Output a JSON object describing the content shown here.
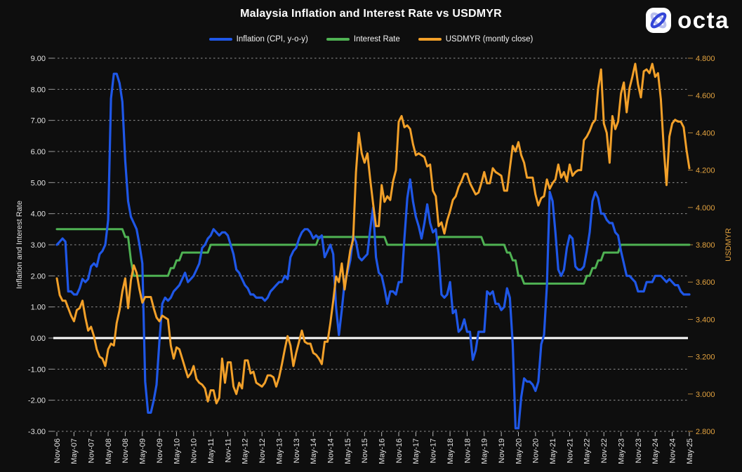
{
  "title": "Malaysia Inflation and Interest Rate vs USDMYR",
  "logo": {
    "text": "octa"
  },
  "legend": [
    {
      "label": "Inflation (CPI, y-o-y)",
      "color": "#1f57e7"
    },
    {
      "label": "Interest Rate",
      "color": "#4fb253"
    },
    {
      "label": "USDMYR (montly close)",
      "color": "#f2a029"
    }
  ],
  "chart_data": {
    "type": "line",
    "title": "Malaysia Inflation and Interest Rate vs USDMYR",
    "x_start": "Nov-2006",
    "x_end": "May-2025",
    "frequency": "monthly",
    "grid": {
      "horizontal": "dashed",
      "zero_line": "solid white"
    },
    "legend_position": "top",
    "x_tick_labels": [
      "Nov-06",
      "May-07",
      "Nov-07",
      "May-08",
      "Nov-08",
      "May-09",
      "Nov-09",
      "May-10",
      "Nov-10",
      "May-11",
      "Nov-11",
      "May-12",
      "Nov-12",
      "May-13",
      "Nov-13",
      "May-14",
      "Nov-14",
      "May-15",
      "Nov-15",
      "May-16",
      "Nov-16",
      "May-17",
      "Nov-17",
      "May-18",
      "Nov-18",
      "May-19",
      "Nov-19",
      "May-20",
      "Nov-20",
      "May-21",
      "Nov-21",
      "May-22",
      "Nov-22",
      "May-23",
      "Nov-23",
      "May-24",
      "Nov-24",
      "May-25"
    ],
    "left_axis": {
      "title": "Inflation and Interest Rate",
      "max": 9,
      "min": -3,
      "step": 1,
      "tick_labels": [
        "9.00",
        "8.00",
        "7.00",
        "6.00",
        "5.00",
        "4.00",
        "3.00",
        "2.00",
        "1.00",
        "0.00",
        "-1.00",
        "-2.00",
        "-3.00"
      ],
      "text_color": "#e3e3e3"
    },
    "right_axis": {
      "title": "USDMYR",
      "max": 4.8,
      "min": 2.8,
      "step": 0.2,
      "tick_labels": [
        "4.800",
        "4.600",
        "4.400",
        "4.200",
        "4.000",
        "3.800",
        "3.600",
        "3.400",
        "3.200",
        "3.000",
        "2.800"
      ],
      "text_color": "#e2a23f"
    },
    "series": [
      {
        "name": "Inflation (CPI, y-o-y)",
        "axis": "left",
        "color": "#1f57e7",
        "values": [
          3.0,
          3.1,
          3.2,
          3.1,
          1.5,
          1.5,
          1.4,
          1.4,
          1.6,
          1.9,
          1.8,
          1.9,
          2.3,
          2.4,
          2.3,
          2.7,
          2.8,
          3.0,
          3.8,
          7.7,
          8.5,
          8.5,
          8.2,
          7.6,
          5.7,
          4.4,
          3.9,
          3.7,
          3.5,
          3.0,
          2.4,
          -1.4,
          -2.4,
          -2.4,
          -2.0,
          -1.5,
          -0.1,
          1.1,
          1.3,
          1.2,
          1.3,
          1.5,
          1.6,
          1.7,
          1.9,
          2.1,
          1.8,
          1.9,
          2.0,
          2.2,
          2.4,
          2.9,
          3.0,
          3.2,
          3.3,
          3.5,
          3.4,
          3.3,
          3.4,
          3.4,
          3.3,
          3.0,
          2.7,
          2.2,
          2.1,
          1.9,
          1.7,
          1.6,
          1.4,
          1.4,
          1.3,
          1.3,
          1.3,
          1.2,
          1.3,
          1.5,
          1.6,
          1.7,
          1.8,
          1.8,
          2.0,
          1.9,
          2.6,
          2.8,
          2.9,
          3.2,
          3.4,
          3.5,
          3.5,
          3.4,
          3.2,
          3.3,
          3.2,
          3.3,
          2.6,
          2.8,
          3.0,
          2.7,
          1.0,
          0.1,
          0.9,
          1.8,
          2.1,
          2.5,
          3.3,
          3.1,
          2.6,
          2.5,
          2.6,
          2.7,
          3.5,
          4.2,
          2.6,
          2.1,
          2.0,
          1.6,
          1.1,
          1.5,
          1.5,
          1.4,
          1.8,
          1.8,
          3.2,
          4.5,
          5.1,
          4.4,
          3.9,
          3.6,
          3.2,
          3.7,
          4.3,
          3.7,
          3.4,
          3.5,
          2.7,
          1.4,
          1.3,
          1.4,
          1.8,
          0.8,
          0.9,
          0.2,
          0.3,
          0.6,
          0.2,
          0.2,
          -0.7,
          -0.4,
          0.2,
          0.2,
          0.2,
          1.5,
          1.4,
          1.5,
          1.1,
          1.1,
          0.9,
          1.0,
          1.6,
          1.3,
          -0.2,
          -2.9,
          -2.9,
          -1.9,
          -1.3,
          -1.4,
          -1.4,
          -1.5,
          -1.7,
          -1.4,
          -0.2,
          0.1,
          1.7,
          4.7,
          4.4,
          3.4,
          2.2,
          2.0,
          2.2,
          2.9,
          3.3,
          3.2,
          2.3,
          2.2,
          2.2,
          2.3,
          2.8,
          3.4,
          4.4,
          4.7,
          4.5,
          4.0,
          4.0,
          3.8,
          3.7,
          3.7,
          3.4,
          3.3,
          2.8,
          2.4,
          2.0,
          2.0,
          1.9,
          1.8,
          1.5,
          1.5,
          1.5,
          1.8,
          1.8,
          1.8,
          2.0,
          2.0,
          2.0,
          1.9,
          1.8,
          1.9,
          1.8,
          1.7,
          1.7,
          1.5,
          1.4,
          1.4,
          1.4
        ]
      },
      {
        "name": "Interest Rate",
        "axis": "left",
        "color": "#4fb253",
        "values": [
          3.5,
          3.5,
          3.5,
          3.5,
          3.5,
          3.5,
          3.5,
          3.5,
          3.5,
          3.5,
          3.5,
          3.5,
          3.5,
          3.5,
          3.5,
          3.5,
          3.5,
          3.5,
          3.5,
          3.5,
          3.5,
          3.5,
          3.5,
          3.5,
          3.25,
          3.25,
          2.5,
          2.0,
          2.0,
          2.0,
          2.0,
          2.0,
          2.0,
          2.0,
          2.0,
          2.0,
          2.0,
          2.0,
          2.0,
          2.0,
          2.25,
          2.25,
          2.5,
          2.5,
          2.75,
          2.75,
          2.75,
          2.75,
          2.75,
          2.75,
          2.75,
          2.75,
          2.75,
          2.75,
          3.0,
          3.0,
          3.0,
          3.0,
          3.0,
          3.0,
          3.0,
          3.0,
          3.0,
          3.0,
          3.0,
          3.0,
          3.0,
          3.0,
          3.0,
          3.0,
          3.0,
          3.0,
          3.0,
          3.0,
          3.0,
          3.0,
          3.0,
          3.0,
          3.0,
          3.0,
          3.0,
          3.0,
          3.0,
          3.0,
          3.0,
          3.0,
          3.0,
          3.0,
          3.0,
          3.0,
          3.0,
          3.0,
          3.25,
          3.25,
          3.25,
          3.25,
          3.25,
          3.25,
          3.25,
          3.25,
          3.25,
          3.25,
          3.25,
          3.25,
          3.25,
          3.25,
          3.25,
          3.25,
          3.25,
          3.25,
          3.25,
          3.25,
          3.25,
          3.25,
          3.25,
          3.25,
          3.0,
          3.0,
          3.0,
          3.0,
          3.0,
          3.0,
          3.0,
          3.0,
          3.0,
          3.0,
          3.0,
          3.0,
          3.0,
          3.0,
          3.0,
          3.0,
          3.0,
          3.0,
          3.25,
          3.25,
          3.25,
          3.25,
          3.25,
          3.25,
          3.25,
          3.25,
          3.25,
          3.25,
          3.25,
          3.25,
          3.25,
          3.25,
          3.25,
          3.25,
          3.0,
          3.0,
          3.0,
          3.0,
          3.0,
          3.0,
          3.0,
          3.0,
          2.75,
          2.75,
          2.5,
          2.5,
          2.0,
          2.0,
          1.75,
          1.75,
          1.75,
          1.75,
          1.75,
          1.75,
          1.75,
          1.75,
          1.75,
          1.75,
          1.75,
          1.75,
          1.75,
          1.75,
          1.75,
          1.75,
          1.75,
          1.75,
          1.75,
          1.75,
          1.75,
          1.75,
          2.0,
          2.0,
          2.25,
          2.25,
          2.5,
          2.5,
          2.75,
          2.75,
          2.75,
          2.75,
          2.75,
          2.75,
          3.0,
          3.0,
          3.0,
          3.0,
          3.0,
          3.0,
          3.0,
          3.0,
          3.0,
          3.0,
          3.0,
          3.0,
          3.0,
          3.0,
          3.0,
          3.0,
          3.0,
          3.0,
          3.0,
          3.0,
          3.0,
          3.0,
          3.0,
          3.0,
          3.0
        ]
      },
      {
        "name": "USDMYR (montly close)",
        "axis": "right",
        "color": "#f2a029",
        "values": [
          3.62,
          3.53,
          3.5,
          3.5,
          3.46,
          3.42,
          3.39,
          3.45,
          3.46,
          3.5,
          3.41,
          3.34,
          3.36,
          3.31,
          3.24,
          3.2,
          3.19,
          3.15,
          3.24,
          3.27,
          3.26,
          3.38,
          3.45,
          3.55,
          3.62,
          3.46,
          3.61,
          3.69,
          3.65,
          3.56,
          3.49,
          3.52,
          3.52,
          3.52,
          3.46,
          3.41,
          3.39,
          3.42,
          3.41,
          3.4,
          3.26,
          3.19,
          3.25,
          3.24,
          3.19,
          3.14,
          3.09,
          3.11,
          3.15,
          3.08,
          3.06,
          3.05,
          3.03,
          2.96,
          3.02,
          3.02,
          2.95,
          2.98,
          3.19,
          3.06,
          3.17,
          3.17,
          3.04,
          3.0,
          3.06,
          3.03,
          3.18,
          3.18,
          3.11,
          3.12,
          3.06,
          3.05,
          3.04,
          3.06,
          3.1,
          3.1,
          3.09,
          3.04,
          3.09,
          3.16,
          3.24,
          3.31,
          3.26,
          3.15,
          3.22,
          3.28,
          3.34,
          3.28,
          3.27,
          3.27,
          3.22,
          3.21,
          3.19,
          3.16,
          3.28,
          3.28,
          3.38,
          3.5,
          3.63,
          3.6,
          3.7,
          3.56,
          3.67,
          3.77,
          3.83,
          4.19,
          4.4,
          4.29,
          4.24,
          4.29,
          4.15,
          4.02,
          3.9,
          3.9,
          4.12,
          4.03,
          4.06,
          4.04,
          4.14,
          4.2,
          4.46,
          4.49,
          4.43,
          4.44,
          4.42,
          4.34,
          4.28,
          4.29,
          4.28,
          4.27,
          4.22,
          4.23,
          4.09,
          4.06,
          3.9,
          3.92,
          3.86,
          3.93,
          3.98,
          4.04,
          4.06,
          4.11,
          4.14,
          4.18,
          4.18,
          4.13,
          4.1,
          4.07,
          4.08,
          4.13,
          4.19,
          4.13,
          4.13,
          4.21,
          4.19,
          4.18,
          4.17,
          4.09,
          4.09,
          4.21,
          4.33,
          4.3,
          4.35,
          4.28,
          4.24,
          4.16,
          4.16,
          4.16,
          4.07,
          4.01,
          4.05,
          4.06,
          4.15,
          4.1,
          4.13,
          4.15,
          4.23,
          4.16,
          4.19,
          4.14,
          4.23,
          4.17,
          4.19,
          4.2,
          4.2,
          4.36,
          4.38,
          4.41,
          4.45,
          4.47,
          4.64,
          4.74,
          4.45,
          4.4,
          4.24,
          4.49,
          4.42,
          4.46,
          4.61,
          4.67,
          4.51,
          4.64,
          4.7,
          4.77,
          4.66,
          4.59,
          4.73,
          4.74,
          4.72,
          4.77,
          4.7,
          4.72,
          4.58,
          4.32,
          4.12,
          4.38,
          4.45,
          4.47,
          4.46,
          4.46,
          4.43,
          4.31,
          4.21
        ]
      }
    ]
  }
}
